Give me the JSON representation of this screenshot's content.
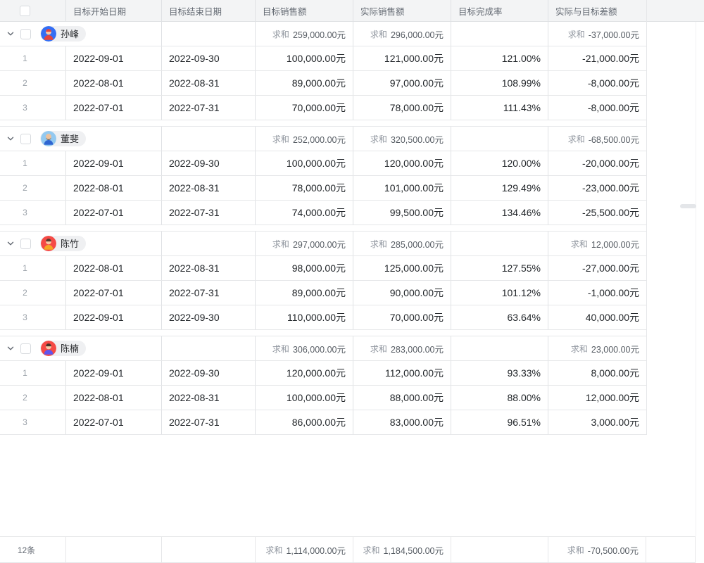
{
  "table": {
    "sum_label": "求和",
    "columns": [
      {
        "label": "目标开始日期"
      },
      {
        "label": "目标结束日期"
      },
      {
        "label": "目标销售额"
      },
      {
        "label": "实际销售额"
      },
      {
        "label": "目标完成率"
      },
      {
        "label": "实际与目标差额"
      }
    ],
    "groups": [
      {
        "name": "孙峰",
        "avatar": {
          "bg": "#346ef4",
          "skin": "#f8c9a4",
          "hair": "#e5453c",
          "shirt": "#e5453c"
        },
        "sums": {
          "target": "259,000.00元",
          "actual": "296,000.00元",
          "diff": "-37,000.00元"
        },
        "rows": [
          {
            "num": "1",
            "start": "2022-09-01",
            "end": "2022-09-30",
            "target": "100,000.00元",
            "actual": "121,000.00元",
            "rate": "121.00%",
            "diff": "-21,000.00元"
          },
          {
            "num": "2",
            "start": "2022-08-01",
            "end": "2022-08-31",
            "target": "89,000.00元",
            "actual": "97,000.00元",
            "rate": "108.99%",
            "diff": "-8,000.00元"
          },
          {
            "num": "3",
            "start": "2022-07-01",
            "end": "2022-07-31",
            "target": "70,000.00元",
            "actual": "78,000.00元",
            "rate": "111.43%",
            "diff": "-8,000.00元"
          }
        ]
      },
      {
        "name": "董斐",
        "avatar": {
          "bg": "#93c9f0",
          "skin": "#ecc19c",
          "hair": "#ecc19c",
          "beard": "#6b5b4f",
          "shirt": "#2e65d1"
        },
        "sums": {
          "target": "252,000.00元",
          "actual": "320,500.00元",
          "diff": "-68,500.00元"
        },
        "rows": [
          {
            "num": "1",
            "start": "2022-09-01",
            "end": "2022-09-30",
            "target": "100,000.00元",
            "actual": "120,000.00元",
            "rate": "120.00%",
            "diff": "-20,000.00元"
          },
          {
            "num": "2",
            "start": "2022-08-01",
            "end": "2022-08-31",
            "target": "78,000.00元",
            "actual": "101,000.00元",
            "rate": "129.49%",
            "diff": "-23,000.00元"
          },
          {
            "num": "3",
            "start": "2022-07-01",
            "end": "2022-07-31",
            "target": "74,000.00元",
            "actual": "99,500.00元",
            "rate": "134.46%",
            "diff": "-25,500.00元"
          }
        ]
      },
      {
        "name": "陈竹",
        "avatar": {
          "bg": "#f54a45",
          "skin": "#f8c9a4",
          "hair": "#53392e",
          "shirt": "#f5a623"
        },
        "sums": {
          "target": "297,000.00元",
          "actual": "285,000.00元",
          "diff": "12,000.00元"
        },
        "rows": [
          {
            "num": "1",
            "start": "2022-08-01",
            "end": "2022-08-31",
            "target": "98,000.00元",
            "actual": "125,000.00元",
            "rate": "127.55%",
            "diff": "-27,000.00元"
          },
          {
            "num": "2",
            "start": "2022-07-01",
            "end": "2022-07-31",
            "target": "89,000.00元",
            "actual": "90,000.00元",
            "rate": "101.12%",
            "diff": "-1,000.00元"
          },
          {
            "num": "3",
            "start": "2022-09-01",
            "end": "2022-09-30",
            "target": "110,000.00元",
            "actual": "70,000.00元",
            "rate": "63.64%",
            "diff": "40,000.00元"
          }
        ]
      },
      {
        "name": "陈楠",
        "avatar": {
          "bg": "#f54a45",
          "skin": "#f8c9a4",
          "hair": "#463329",
          "shirt": "#5f55ee"
        },
        "sums": {
          "target": "306,000.00元",
          "actual": "283,000.00元",
          "diff": "23,000.00元"
        },
        "rows": [
          {
            "num": "1",
            "start": "2022-09-01",
            "end": "2022-09-30",
            "target": "120,000.00元",
            "actual": "112,000.00元",
            "rate": "93.33%",
            "diff": "8,000.00元"
          },
          {
            "num": "2",
            "start": "2022-08-01",
            "end": "2022-08-31",
            "target": "100,000.00元",
            "actual": "88,000.00元",
            "rate": "88.00%",
            "diff": "12,000.00元"
          },
          {
            "num": "3",
            "start": "2022-07-01",
            "end": "2022-07-31",
            "target": "86,000.00元",
            "actual": "83,000.00元",
            "rate": "96.51%",
            "diff": "3,000.00元"
          }
        ]
      }
    ],
    "footer": {
      "count": "12条",
      "target": "1,114,000.00元",
      "actual": "1,184,500.00元",
      "diff": "-70,500.00元"
    },
    "colors": {
      "header_bg": "#f3f4f5",
      "border": "#e6e7e9",
      "text": "#212529",
      "muted": "#646a73"
    }
  }
}
